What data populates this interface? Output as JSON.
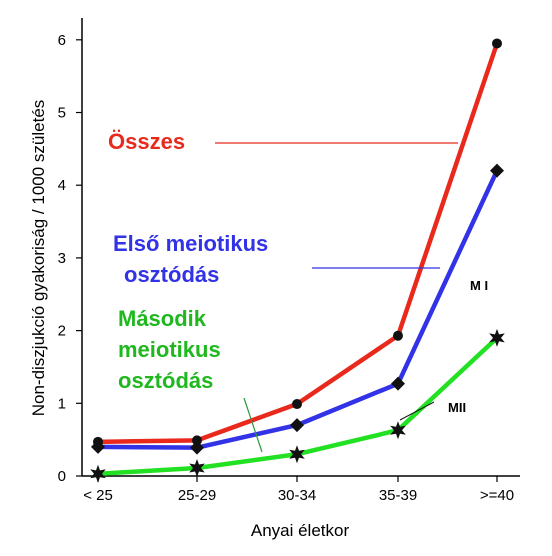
{
  "chart_data": {
    "type": "line",
    "categories": [
      "< 25",
      "25-29",
      "30-34",
      "35-39",
      ">=40"
    ],
    "yticks": [
      "0",
      "1",
      "2",
      "3",
      "4",
      "5",
      "6"
    ],
    "ylim": [
      0,
      6.3
    ],
    "xlabel": "Anyai életkor",
    "ylabel": "Non-diszjukció gyakoriság / 1000 születés",
    "grid": false,
    "series": [
      {
        "name": "Összes",
        "values": [
          0.47,
          0.49,
          0.99,
          1.93,
          5.95
        ],
        "color": "#e8291c",
        "marker": "circle"
      },
      {
        "name": "Első meiotikus osztódás",
        "values": [
          0.4,
          0.39,
          0.7,
          1.27,
          4.2
        ],
        "color": "#3232e6",
        "marker": "diamond"
      },
      {
        "name": "Második meiotikus osztódás",
        "values": [
          0.03,
          0.11,
          0.3,
          0.63,
          1.9
        ],
        "color": "#22e022",
        "marker": "star"
      }
    ],
    "legend_labels": {
      "osszes": "Összes",
      "elso_line1": "Első meiotikus",
      "elso_line2": "osztódás",
      "masodik_line1": "Második",
      "masodik_line2": "meiotikus",
      "masodik_line3": "osztódás"
    },
    "annotations": {
      "mi": "M I",
      "mii": "MII"
    }
  }
}
